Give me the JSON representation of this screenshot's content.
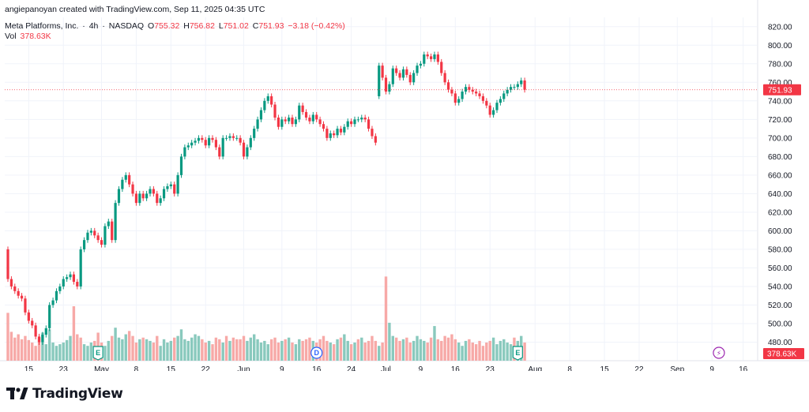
{
  "attribution": "angiepanoyan created with TradingView.com, Sep 11, 2025 04:35 UTC",
  "symbol": {
    "name": "Meta Platforms, Inc.",
    "separator1": "·",
    "interval": "4h",
    "separator2": "·",
    "exchange": "NASDAQ",
    "o_label": "O",
    "o_value": "755.32",
    "h_label": "H",
    "h_value": "756.82",
    "l_label": "L",
    "l_value": "751.02",
    "c_label": "C",
    "c_value": "751.93",
    "change": "−3.18 (−0.42%)"
  },
  "volume_label": {
    "label": "Vol",
    "value": "378.63K"
  },
  "price_badge": "751.93",
  "volume_badge": "378.63K",
  "brand": "TradingView",
  "colors": {
    "up": "#089981",
    "down": "#f23645",
    "vol_up": "#89c9bd",
    "vol_down": "#f7a9a7",
    "grid": "#f0f3fa",
    "axis_text": "#131722"
  },
  "chart_data": {
    "type": "candlestick",
    "ylim": [
      460,
      830
    ],
    "y_ticks": [
      "480.00",
      "500.00",
      "520.00",
      "540.00",
      "560.00",
      "580.00",
      "600.00",
      "620.00",
      "640.00",
      "660.00",
      "680.00",
      "700.00",
      "720.00",
      "740.00",
      "760.00",
      "780.00",
      "800.00",
      "820.00"
    ],
    "x_ticks": [
      {
        "label": "15",
        "i": 6
      },
      {
        "label": "23",
        "i": 16
      },
      {
        "label": "May",
        "i": 27
      },
      {
        "label": "8",
        "i": 37
      },
      {
        "label": "15",
        "i": 47
      },
      {
        "label": "22",
        "i": 57
      },
      {
        "label": "Jun",
        "i": 68
      },
      {
        "label": "9",
        "i": 79
      },
      {
        "label": "16",
        "i": 89
      },
      {
        "label": "24",
        "i": 99
      },
      {
        "label": "Jul",
        "i": 109
      },
      {
        "label": "9",
        "i": 119
      },
      {
        "label": "16",
        "i": 129
      },
      {
        "label": "23",
        "i": 139
      },
      {
        "label": "Aug",
        "i": 152
      },
      {
        "label": "8",
        "i": 162
      },
      {
        "label": "15",
        "i": 172
      },
      {
        "label": "22",
        "i": 182
      },
      {
        "label": "Sep",
        "i": 193
      },
      {
        "label": "9",
        "i": 203
      },
      {
        "label": "16",
        "i": 212
      }
    ],
    "events": [
      {
        "type": "earnings",
        "label": "E",
        "i": 26
      },
      {
        "type": "dividend",
        "label": "D",
        "i": 89
      },
      {
        "type": "earnings",
        "label": "E",
        "i": 147
      },
      {
        "type": "split",
        "label": "⚡",
        "i": 205
      }
    ],
    "last_price": 751.93,
    "close": [
      548,
      540,
      535,
      530,
      527,
      512,
      503,
      498,
      486,
      480,
      488,
      495,
      520,
      525,
      535,
      540,
      548,
      550,
      553,
      545,
      540,
      580,
      590,
      598,
      600,
      595,
      590,
      585,
      605,
      610,
      590,
      630,
      645,
      655,
      660,
      650,
      640,
      630,
      640,
      635,
      640,
      645,
      640,
      630,
      635,
      645,
      648,
      650,
      640,
      660,
      680,
      690,
      692,
      695,
      697,
      700,
      698,
      692,
      700,
      698,
      690,
      680,
      700,
      700,
      702,
      700,
      700,
      695,
      680,
      690,
      700,
      710,
      720,
      730,
      740,
      745,
      736,
      722,
      712,
      720,
      718,
      722,
      715,
      720,
      735,
      728,
      722,
      718,
      725,
      720,
      715,
      710,
      700,
      705,
      703,
      710,
      706,
      712,
      718,
      715,
      720,
      720,
      722,
      720,
      710,
      702,
      695,
      778,
      765,
      750,
      758,
      775,
      770,
      765,
      774,
      768,
      760,
      770,
      778,
      780,
      790,
      788,
      785,
      790,
      782,
      770,
      760,
      752,
      748,
      738,
      742,
      750,
      755,
      752,
      750,
      748,
      745,
      740,
      735,
      725,
      730,
      738,
      742,
      748,
      752,
      755,
      755,
      758,
      762,
      752
    ],
    "open": [
      580,
      548,
      540,
      535,
      530,
      527,
      512,
      503,
      498,
      486,
      480,
      488,
      495,
      520,
      525,
      535,
      540,
      548,
      550,
      553,
      545,
      540,
      580,
      590,
      598,
      600,
      595,
      590,
      585,
      605,
      610,
      590,
      630,
      645,
      655,
      660,
      650,
      640,
      630,
      640,
      635,
      640,
      645,
      640,
      630,
      635,
      645,
      648,
      650,
      640,
      660,
      680,
      690,
      692,
      695,
      697,
      700,
      698,
      692,
      700,
      698,
      690,
      680,
      700,
      700,
      702,
      700,
      700,
      695,
      680,
      690,
      700,
      710,
      720,
      730,
      740,
      745,
      736,
      722,
      712,
      720,
      718,
      722,
      715,
      720,
      735,
      728,
      722,
      718,
      725,
      720,
      715,
      710,
      700,
      705,
      703,
      710,
      706,
      712,
      718,
      715,
      720,
      720,
      722,
      720,
      710,
      702,
      745,
      778,
      765,
      750,
      758,
      775,
      770,
      765,
      774,
      768,
      760,
      770,
      778,
      780,
      790,
      788,
      785,
      790,
      782,
      770,
      760,
      752,
      748,
      738,
      742,
      750,
      755,
      752,
      750,
      748,
      745,
      740,
      735,
      725,
      730,
      738,
      742,
      748,
      752,
      755,
      755,
      758,
      762
    ],
    "volume": [
      58,
      35,
      28,
      32,
      26,
      30,
      25,
      22,
      18,
      28,
      34,
      20,
      38,
      22,
      18,
      20,
      22,
      25,
      30,
      66,
      32,
      28,
      20,
      18,
      22,
      24,
      34,
      22,
      18,
      24,
      30,
      40,
      28,
      26,
      32,
      36,
      30,
      22,
      26,
      28,
      26,
      24,
      22,
      30,
      18,
      26,
      22,
      24,
      28,
      30,
      38,
      26,
      24,
      28,
      32,
      30,
      26,
      22,
      24,
      20,
      28,
      26,
      22,
      30,
      24,
      28,
      26,
      26,
      30,
      24,
      28,
      32,
      26,
      22,
      24,
      20,
      26,
      28,
      22,
      24,
      26,
      28,
      22,
      20,
      26,
      24,
      26,
      28,
      24,
      22,
      26,
      30,
      24,
      22,
      20,
      26,
      28,
      32,
      24,
      20,
      22,
      26,
      28,
      22,
      24,
      30,
      24,
      18,
      22,
      102,
      46,
      30,
      28,
      24,
      26,
      28,
      22,
      24,
      30,
      26,
      24,
      22,
      28,
      42,
      26,
      24,
      30,
      28,
      32,
      26,
      22,
      18,
      24,
      26,
      22,
      20,
      24,
      18,
      22,
      24,
      28,
      20,
      24,
      26,
      22,
      20,
      28,
      24,
      30,
      22
    ],
    "volume_up": [
      false,
      false,
      false,
      false,
      false,
      false,
      false,
      false,
      false,
      false,
      true,
      true,
      true,
      true,
      true,
      true,
      true,
      true,
      true,
      false,
      false,
      false,
      true,
      true,
      true,
      false,
      false,
      false,
      true,
      true,
      false,
      true,
      true,
      true,
      true,
      false,
      false,
      false,
      true,
      false,
      true,
      true,
      false,
      false,
      true,
      true,
      true,
      true,
      false,
      true,
      true,
      true,
      true,
      true,
      true,
      true,
      false,
      false,
      true,
      false,
      false,
      false,
      true,
      false,
      true,
      false,
      false,
      false,
      false,
      true,
      true,
      true,
      true,
      true,
      true,
      true,
      false,
      false,
      false,
      true,
      false,
      true,
      false,
      true,
      true,
      false,
      false,
      false,
      true,
      false,
      false,
      false,
      false,
      true,
      false,
      true,
      false,
      true,
      true,
      false,
      true,
      false,
      true,
      false,
      false,
      false,
      false,
      true,
      false,
      false,
      true,
      true,
      false,
      false,
      true,
      false,
      false,
      true,
      true,
      true,
      true,
      false,
      false,
      true,
      false,
      false,
      false,
      false,
      false,
      false,
      true,
      true,
      true,
      false,
      false,
      false,
      false,
      false,
      false,
      false,
      true,
      true,
      true,
      true,
      true,
      true,
      false,
      true,
      true,
      false
    ]
  }
}
